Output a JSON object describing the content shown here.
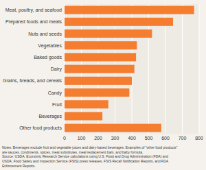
{
  "chart_data": {
    "type": "bar",
    "orientation": "horizontal",
    "categories": [
      "Other food products",
      "Beverages",
      "Fruit",
      "Candy",
      "Grains, breads, and cereals",
      "Dairy",
      "Baked goods",
      "Vegetables",
      "Nuts and seeds",
      "Prepared foods and meals",
      "Meat, poultry, and seafood"
    ],
    "values": [
      575,
      225,
      260,
      385,
      400,
      415,
      425,
      430,
      520,
      645,
      770
    ],
    "color": "#f47d30",
    "xlim": [
      0,
      800
    ],
    "xticks": [
      0,
      100,
      200,
      300,
      400,
      500,
      600,
      700,
      800
    ],
    "grid": true,
    "annotation": "Notes: Beverages exclude fruit and vegetable juices and dairy-based beverages. Examples of \"other food products\"\nare sauces, condiments, spices, meat substitutes, meal replacement bars, and baby formula.\nSource: USDA, Economic Research Service calculations using U.S. Food and Drug Administration (FDA) and\nUSDA, Food Safety and Inspection Service (FSIS) press releases, FSIS Recall Notification Reports, and FDA\nEnforcement Reports."
  }
}
